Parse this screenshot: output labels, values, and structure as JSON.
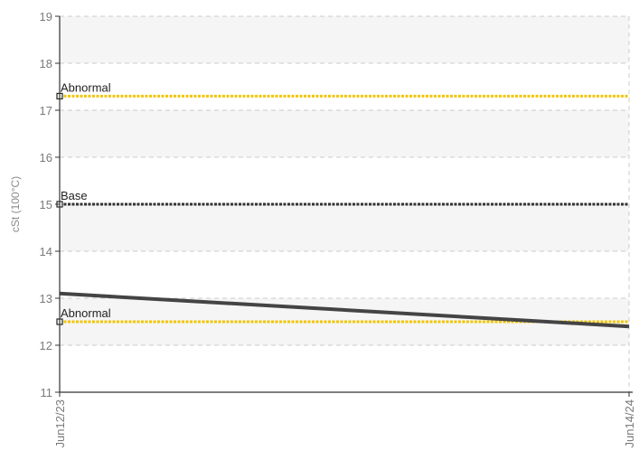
{
  "chart_data": {
    "type": "line",
    "title": "",
    "xlabel": "",
    "ylabel": "cSt (100°C)",
    "x": [
      "Jun12/23",
      "Jun14/24"
    ],
    "ylim": [
      11,
      19
    ],
    "yticks": [
      "11",
      "12",
      "13",
      "14",
      "15",
      "16",
      "17",
      "18",
      "19"
    ],
    "grid": true,
    "series": [
      {
        "values": [
          13.1,
          12.4
        ],
        "color": "#444444"
      }
    ],
    "reference_lines": [
      {
        "label": "Abnormal",
        "value": 17.3,
        "color": "#f2c500"
      },
      {
        "label": "Base",
        "value": 15.0,
        "color": "#333333"
      },
      {
        "label": "Abnormal",
        "value": 12.5,
        "color": "#f2c500"
      }
    ],
    "colors": {
      "plot_band": "#f5f5f5",
      "grid": "#cccccc",
      "axis": "#333333"
    }
  }
}
